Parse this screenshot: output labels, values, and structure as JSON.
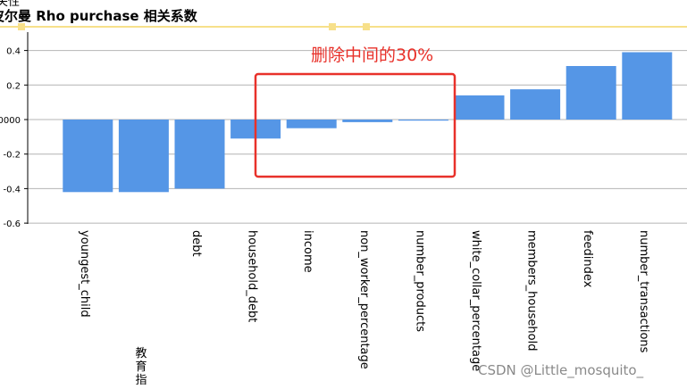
{
  "header": {
    "title_top": "关性",
    "title_main": "皮尔曼 Rho purchase 相关系数"
  },
  "annotation": {
    "label": "删除中间的30%"
  },
  "watermark": {
    "text": "CSDN @Little_mosquito_"
  },
  "extra_label": {
    "chars": [
      "教",
      "育",
      "指"
    ]
  },
  "colors": {
    "bar": "#5596e6",
    "grid": "#b4b4b4",
    "highlight_box": "#e8312a",
    "title_band": "#f7e08a"
  },
  "chart_data": {
    "type": "bar",
    "title": "皮尔曼 Rho purchase 相关系数",
    "categories": [
      "youngest_child",
      "教育指",
      "debt",
      "household_debt",
      "income",
      "non_worker_percentage",
      "number_products",
      "white_collar_percentage",
      "members_household",
      "feedindex",
      "number_transactions"
    ],
    "category_labels": [
      "youngest_child",
      "",
      "debt",
      "household_debt",
      "income",
      "non_worker_percentage",
      "number_products",
      "white_collar_percentage",
      "members_household",
      "feedindex",
      "number_transactions"
    ],
    "values": [
      -0.42,
      -0.42,
      -0.4,
      -0.11,
      -0.05,
      -0.015,
      -0.005,
      0.14,
      0.175,
      0.31,
      0.39
    ],
    "ylim": [
      -0.6,
      0.5
    ],
    "yticks": [
      0.4,
      0.2,
      0.0,
      -0.2,
      -0.4,
      -0.6
    ],
    "ytick_labels": [
      "0.4",
      "0.2",
      ".0000",
      "-0.2",
      "-0.4",
      "-0.6"
    ],
    "grid": true,
    "highlight": {
      "categories": [
        "income",
        "non_worker_percentage",
        "number_products"
      ],
      "label": "删除中间的30%"
    }
  }
}
